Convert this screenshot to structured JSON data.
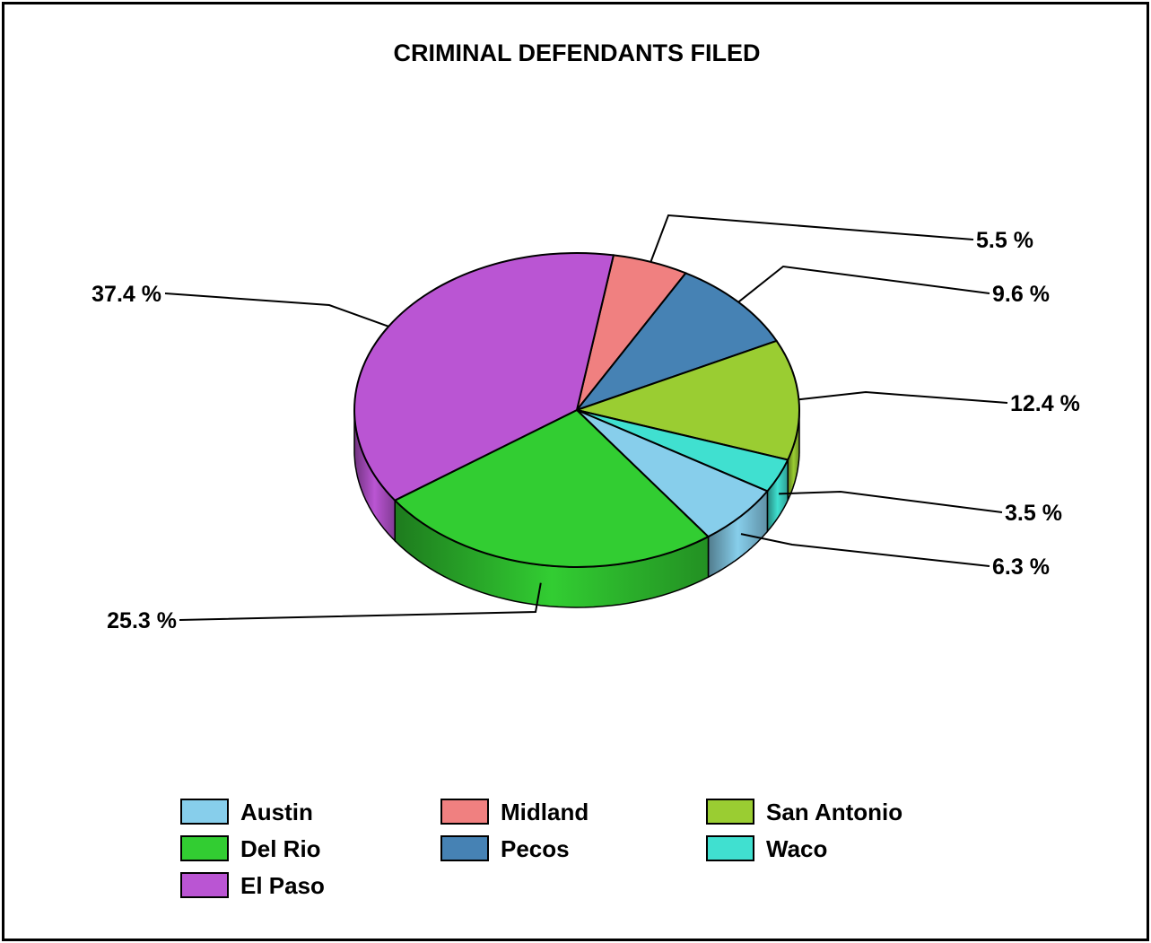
{
  "chart_data": {
    "type": "pie",
    "title": "CRIMINAL DEFENDANTS FILED",
    "slices": [
      {
        "name": "Midland",
        "value": 5.5,
        "label": "5.5 %",
        "color": "#F08080"
      },
      {
        "name": "Pecos",
        "value": 9.6,
        "label": "9.6 %",
        "color": "#4682B4"
      },
      {
        "name": "San Antonio",
        "value": 12.4,
        "label": "12.4 %",
        "color": "#9ACD32"
      },
      {
        "name": "Waco",
        "value": 3.5,
        "label": "3.5 %",
        "color": "#40E0D0"
      },
      {
        "name": "Austin",
        "value": 6.3,
        "label": "6.3 %",
        "color": "#87CEEB"
      },
      {
        "name": "Del Rio",
        "value": 25.3,
        "label": "25.3 %",
        "color": "#32CD32"
      },
      {
        "name": "El Paso",
        "value": 37.4,
        "label": "37.4 %",
        "color": "#BA55D3"
      }
    ],
    "legend": {
      "placement": "bottom",
      "order": [
        "Austin",
        "Midland",
        "San Antonio",
        "Del Rio",
        "Pecos",
        "Waco",
        "El Paso"
      ]
    },
    "style": "3d"
  }
}
